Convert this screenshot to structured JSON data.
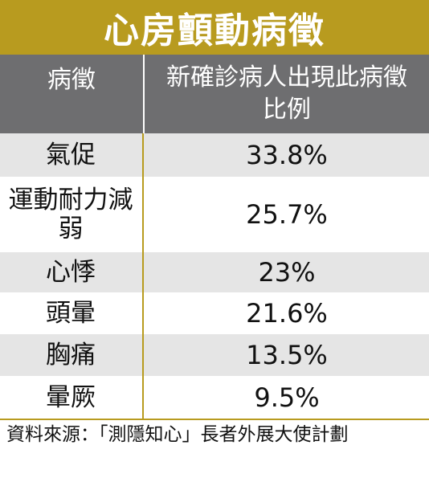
{
  "title": "心房顫動病徵",
  "header": {
    "symptom_label": "病徵",
    "percent_label": "新確診病人出現此病徵比例"
  },
  "rows": [
    {
      "symptom": "氣促",
      "percent": "33.8%"
    },
    {
      "symptom": "運動耐力減弱",
      "percent": "25.7%"
    },
    {
      "symptom": "心悸",
      "percent": "23%"
    },
    {
      "symptom": "頭暈",
      "percent": "21.6%"
    },
    {
      "symptom": "胸痛",
      "percent": "13.5%"
    },
    {
      "symptom": "暈厥",
      "percent": "9.5%"
    }
  ],
  "source": "資料來源：「測隱知心」長者外展大使計劃",
  "colors": {
    "title_bg": "#b89b1f",
    "header_bg": "#6e6e70",
    "row_shade": "#e5e5e5",
    "rule": "#b89b1f"
  }
}
